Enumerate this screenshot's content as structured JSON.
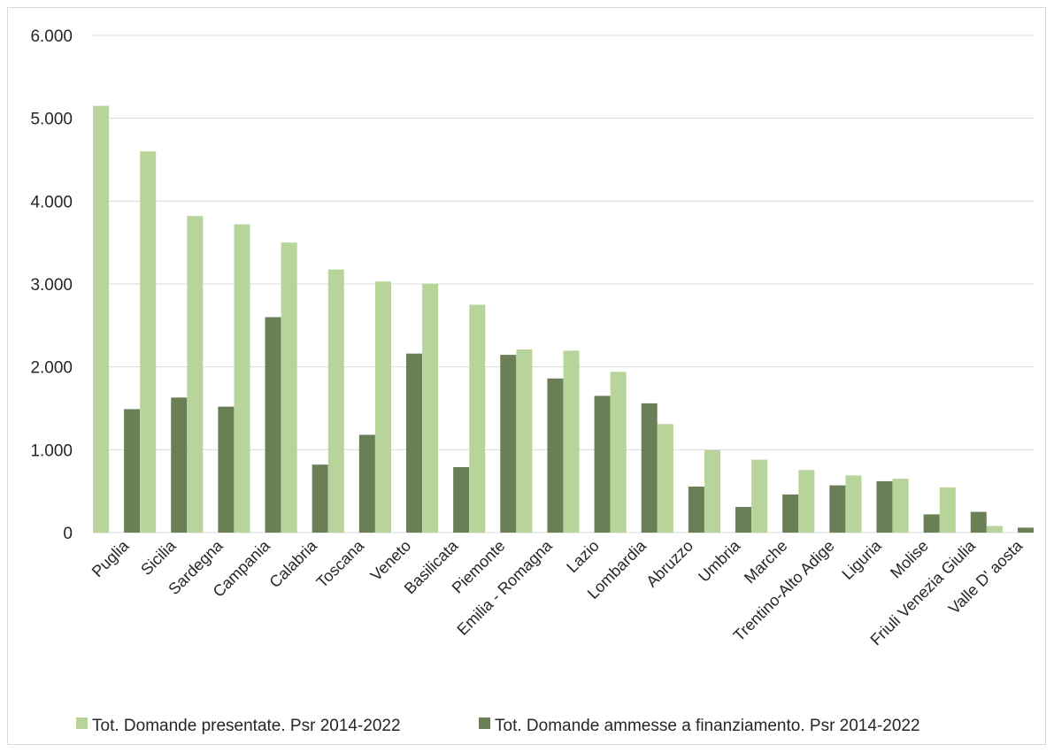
{
  "chart_data": {
    "type": "bar",
    "categories": [
      "Puglia",
      "Sicilia",
      "Sardegna",
      "Campania",
      "Calabria",
      "Toscana",
      "Veneto",
      "Basilicata",
      "Piemonte",
      "Emilia - Romagna",
      "Lazio",
      "Lombardia",
      "Abruzzo",
      "Umbria",
      "Marche",
      "Trentino-Alto Adige",
      "Liguria",
      "Molise",
      "Friuli Venezia Giulia",
      "Valle D' aosta"
    ],
    "series": [
      {
        "name": "Tot. Domande presentate. Psr 2014-2022",
        "color": "#b7d59a",
        "values": [
          5150,
          4600,
          3820,
          3720,
          3500,
          3175,
          3030,
          3005,
          2750,
          2210,
          2195,
          1940,
          1310,
          995,
          880,
          755,
          690,
          650,
          545,
          80
        ]
      },
      {
        "name": "Tot. Domande ammesse a finanziamento. Psr 2014-2022",
        "color": "#6b7f56",
        "values": [
          1490,
          1630,
          1520,
          2600,
          820,
          1180,
          2160,
          790,
          2145,
          1860,
          1650,
          1560,
          555,
          310,
          460,
          570,
          620,
          220,
          250,
          60
        ]
      }
    ],
    "yticks": [
      "0",
      "1.000",
      "2.000",
      "3.000",
      "4.000",
      "5.000",
      "6.000"
    ],
    "ylim": [
      0,
      6000
    ],
    "grid": true,
    "legend_position": "bottom"
  }
}
